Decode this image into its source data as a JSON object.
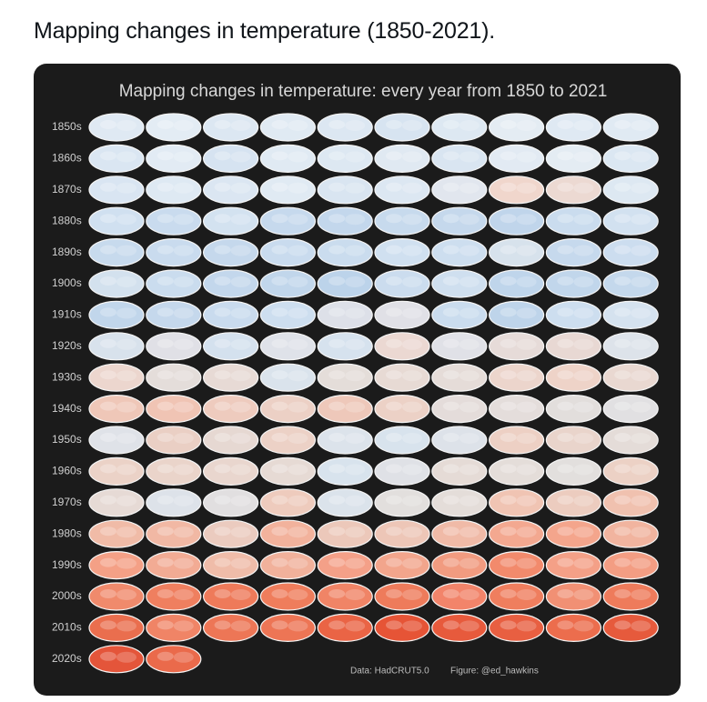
{
  "header": {
    "title": "Mapping changes in temperature (1850-2021)."
  },
  "figure": {
    "title": "Mapping changes in temperature: every year from 1850 to 2021",
    "rows": [
      {
        "label": "1850s",
        "colors": [
          "#dfe9f3",
          "#e3ecf4",
          "#dce7f2",
          "#e0eaf3",
          "#dce7f2",
          "#d7e4f1",
          "#dde8f2",
          "#e4ecf3",
          "#dfe9f3",
          "#e0eaf3"
        ]
      },
      {
        "label": "1860s",
        "colors": [
          "#dae6f2",
          "#e2ebf4",
          "#d6e3f1",
          "#e0eaf3",
          "#dde8f2",
          "#e0e9f2",
          "#d9e5f1",
          "#e2eaf3",
          "#e4ecf3",
          "#dbe7f2"
        ]
      },
      {
        "label": "1870s",
        "colors": [
          "#d9e5f2",
          "#dee9f3",
          "#dbe6f2",
          "#e0eaf3",
          "#d9e5f1",
          "#dce7f2",
          "#e1e6ee",
          "#f0d6cc",
          "#ecd9d2",
          "#dde8f2"
        ]
      },
      {
        "label": "1880s",
        "colors": [
          "#d0e0f0",
          "#c9dbee",
          "#d3e2f0",
          "#c6d9ed",
          "#c3d7ec",
          "#c7daed",
          "#c5d8ec",
          "#c0d5eb",
          "#cadcee",
          "#d2e1f0"
        ]
      },
      {
        "label": "1890s",
        "colors": [
          "#c7daed",
          "#c9dbee",
          "#c5d8ec",
          "#c9dbee",
          "#cadcee",
          "#d0e0f0",
          "#cddeef",
          "#d7e2ec",
          "#c6d9ed",
          "#ccddef"
        ]
      },
      {
        "label": "1900s",
        "colors": [
          "#d3e1ee",
          "#cadcee",
          "#c3d7ec",
          "#c1d6eb",
          "#bcd3ea",
          "#cbdcee",
          "#cfdfef",
          "#bfd5eb",
          "#c1d6eb",
          "#c4d8ec"
        ]
      },
      {
        "label": "1910s",
        "colors": [
          "#c1d6eb",
          "#c5d8ec",
          "#c9dbee",
          "#cddeef",
          "#dde0e8",
          "#e0e0e6",
          "#cadcee",
          "#bed4ea",
          "#cddeef",
          "#d5e2ef"
        ]
      },
      {
        "label": "1920s",
        "colors": [
          "#d8e2ec",
          "#e0e0e6",
          "#d4e1ee",
          "#dfe2e9",
          "#d6e2ee",
          "#ebd8d2",
          "#e0e1e7",
          "#e6dbd8",
          "#e8d8d3",
          "#dde3ea"
        ]
      },
      {
        "label": "1930s",
        "colors": [
          "#ecd6ce",
          "#e4ddda",
          "#e7dad5",
          "#dae3ec",
          "#e4ddd9",
          "#e7dad4",
          "#e5dcd8",
          "#ecd5cc",
          "#eed3c8",
          "#e9d8d1"
        ]
      },
      {
        "label": "1940s",
        "colors": [
          "#efc7b8",
          "#f0c4b4",
          "#eecbbe",
          "#ecd0c5",
          "#eec8ba",
          "#ecd1c6",
          "#e4dcda",
          "#e4dddb",
          "#e2dedc",
          "#e1e0e2"
        ]
      },
      {
        "label": "1950s",
        "colors": [
          "#dfe2e8",
          "#eacfc4",
          "#e6d8d2",
          "#ecd1c6",
          "#dce3eb",
          "#d8e3ed",
          "#dde2e9",
          "#edd0c4",
          "#e9d4cb",
          "#e4dcd8"
        ]
      },
      {
        "label": "1960s",
        "colors": [
          "#ebd2c7",
          "#ead4ca",
          "#e9d6ce",
          "#e6dad4",
          "#d8e3ed",
          "#dfe1e6",
          "#e5dbd6",
          "#e4ddd9",
          "#e2dfdd",
          "#ecd1c5"
        ]
      },
      {
        "label": "1970s",
        "colors": [
          "#e6dad5",
          "#dde2e9",
          "#e1dfe0",
          "#eecbbd",
          "#dbe3eb",
          "#e2dfdd",
          "#e4ddd9",
          "#f0c4b3",
          "#ecccbf",
          "#f0c1af"
        ]
      },
      {
        "label": "1980s",
        "colors": [
          "#f0bba7",
          "#f1b8a4",
          "#ebcbbf",
          "#f2b29c",
          "#ecc8ba",
          "#edc6b7",
          "#f0baa7",
          "#f3a890",
          "#f4a58c",
          "#f1b49f"
        ]
      },
      {
        "label": "1990s",
        "colors": [
          "#f4a086",
          "#f2ab94",
          "#efbca9",
          "#f1b19b",
          "#f4a088",
          "#f2a58c",
          "#f19b80",
          "#f28a6c",
          "#f4a087",
          "#f39d83"
        ]
      },
      {
        "label": "2000s",
        "colors": [
          "#f08a6c",
          "#ef7f5f",
          "#ee7a5a",
          "#ef7d5c",
          "#f08466",
          "#ee7b5b",
          "#f2846a",
          "#ef7e5e",
          "#f19074",
          "#ee7b5b"
        ]
      },
      {
        "label": "2010s",
        "colors": [
          "#ea6e4e",
          "#f08466",
          "#ed7656",
          "#ed7555",
          "#ea6445",
          "#e65436",
          "#e75a3c",
          "#e85f41",
          "#ec6d4d",
          "#e65a3c"
        ]
      },
      {
        "label": "2020s",
        "colors": [
          "#e4553a",
          "#ea6a4b"
        ]
      }
    ],
    "credits": [
      "Data: HadCRUT5.0",
      "Figure: @ed_hawkins"
    ]
  }
}
